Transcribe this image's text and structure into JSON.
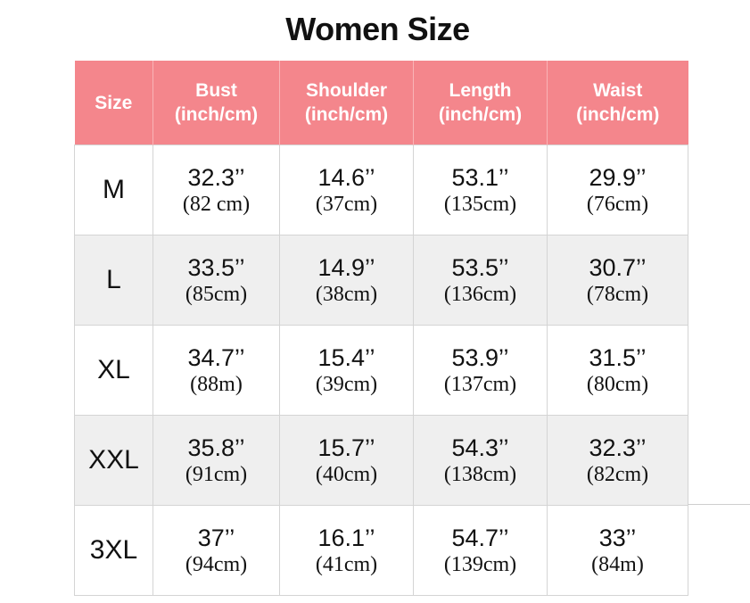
{
  "title": "Women Size",
  "header": {
    "size": "Size",
    "bust": [
      "Bust",
      "(inch/cm)"
    ],
    "shoulder": [
      "Shoulder",
      "(inch/cm)"
    ],
    "length": [
      "Length",
      "(inch/cm)"
    ],
    "waist": [
      "Waist",
      "(inch/cm)"
    ]
  },
  "colors": {
    "header_bg": "#f4868c",
    "header_text": "#ffffff",
    "row_alt_bg": "#efefef"
  },
  "rows": [
    {
      "size": "M",
      "bust": {
        "inch": "32.3’’",
        "cm": "(82 cm)"
      },
      "shoulder": {
        "inch": "14.6’’",
        "cm": "(37cm)"
      },
      "length": {
        "inch": "53.1’’",
        "cm": "(135cm)"
      },
      "waist": {
        "inch": "29.9’’",
        "cm": "(76cm)"
      }
    },
    {
      "size": "L",
      "bust": {
        "inch": "33.5’’",
        "cm": "(85cm)"
      },
      "shoulder": {
        "inch": "14.9’’",
        "cm": "(38cm)"
      },
      "length": {
        "inch": "53.5’’",
        "cm": "(136cm)"
      },
      "waist": {
        "inch": "30.7’’",
        "cm": "(78cm)"
      }
    },
    {
      "size": "XL",
      "bust": {
        "inch": "34.7’’",
        "cm": "(88m)"
      },
      "shoulder": {
        "inch": "15.4’’",
        "cm": "(39cm)"
      },
      "length": {
        "inch": "53.9’’",
        "cm": "(137cm)"
      },
      "waist": {
        "inch": "31.5’’",
        "cm": "(80cm)"
      }
    },
    {
      "size": "XXL",
      "bust": {
        "inch": "35.8’’",
        "cm": "(91cm)"
      },
      "shoulder": {
        "inch": "15.7’’",
        "cm": "(40cm)"
      },
      "length": {
        "inch": "54.3’’",
        "cm": "(138cm)"
      },
      "waist": {
        "inch": "32.3’’",
        "cm": "(82cm)"
      }
    },
    {
      "size": "3XL",
      "bust": {
        "inch": "37’’",
        "cm": "(94cm)"
      },
      "shoulder": {
        "inch": "16.1’’",
        "cm": "(41cm)"
      },
      "length": {
        "inch": "54.7’’",
        "cm": "(139cm)"
      },
      "waist": {
        "inch": "33’’",
        "cm": "(84m)"
      }
    }
  ]
}
